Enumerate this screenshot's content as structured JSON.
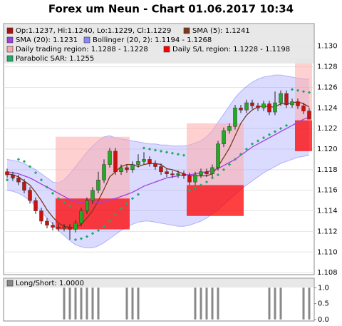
{
  "chart_data": {
    "type": "candlestick",
    "title": "Forex um Neun - Chart 01.06.2017 10:34",
    "ylim": [
      1.1078,
      1.1322
    ],
    "yticks": [
      1.108,
      {
        "value": 1.11,
        "label": "1.110"
      },
      1.112,
      1.114,
      1.116,
      1.118,
      {
        "value": 1.12,
        "label": "1.120"
      },
      1.122,
      1.124,
      1.126,
      1.128,
      {
        "value": 1.13,
        "label": "1.130"
      }
    ],
    "grid": true,
    "candles": {
      "name": "Op:1.1237, Hi:1.1240, Lo:1.1229, Cl:1.1229",
      "color": "#aa1111",
      "color_up": "#22aa22",
      "color_down": "#cc1111",
      "open": [
        1.1178,
        1.1175,
        1.1172,
        1.1168,
        1.116,
        1.115,
        1.114,
        1.113,
        1.1126,
        1.1124,
        1.1123,
        1.1124,
        1.1122,
        1.1128,
        1.114,
        1.115,
        1.116,
        1.117,
        1.1185,
        1.1198,
        1.1178,
        1.1182,
        1.118,
        1.1185,
        1.1188,
        1.119,
        1.1186,
        1.1183,
        1.1178,
        1.1176,
        1.1175,
        1.1176,
        1.1174,
        1.1168,
        1.1175,
        1.1178,
        1.1176,
        1.1182,
        1.1205,
        1.1218,
        1.1222,
        1.124,
        1.1238,
        1.1245,
        1.1242,
        1.124,
        1.1244,
        1.1236,
        1.1245,
        1.1254,
        1.1243,
        1.1246,
        1.1242,
        1.1237
      ],
      "high": [
        1.1181,
        1.1178,
        1.1175,
        1.1171,
        1.1163,
        1.1153,
        1.1143,
        1.1133,
        1.1129,
        1.1127,
        1.1127,
        1.1127,
        1.1131,
        1.1143,
        1.1153,
        1.1163,
        1.1178,
        1.119,
        1.1201,
        1.1201,
        1.1185,
        1.1185,
        1.1188,
        1.1195,
        1.1197,
        1.1193,
        1.1189,
        1.1186,
        1.1181,
        1.1179,
        1.1179,
        1.1179,
        1.1177,
        1.1178,
        1.1181,
        1.1181,
        1.1185,
        1.1208,
        1.1221,
        1.1225,
        1.1243,
        1.1243,
        1.1248,
        1.1248,
        1.1245,
        1.1247,
        1.1247,
        1.1256,
        1.1257,
        1.1257,
        1.1249,
        1.1249,
        1.1245,
        1.124
      ],
      "low": [
        1.1172,
        1.1169,
        1.1165,
        1.1157,
        1.1147,
        1.1137,
        1.1127,
        1.1123,
        1.1121,
        1.112,
        1.112,
        1.1112,
        1.1119,
        1.1125,
        1.1137,
        1.1147,
        1.1157,
        1.1167,
        1.1182,
        1.1175,
        1.1175,
        1.1177,
        1.1177,
        1.1182,
        1.1185,
        1.1183,
        1.118,
        1.1175,
        1.1173,
        1.1172,
        1.1172,
        1.1171,
        1.1165,
        1.1165,
        1.1172,
        1.1173,
        1.1173,
        1.1179,
        1.1202,
        1.1215,
        1.1219,
        1.1235,
        1.1235,
        1.1239,
        1.1237,
        1.1237,
        1.1233,
        1.1233,
        1.1242,
        1.124,
        1.124,
        1.1239,
        1.1234,
        1.1229
      ],
      "close": [
        1.1175,
        1.1172,
        1.1168,
        1.116,
        1.115,
        1.114,
        1.113,
        1.1126,
        1.1124,
        1.1123,
        1.1124,
        1.1122,
        1.1128,
        1.114,
        1.115,
        1.116,
        1.117,
        1.1185,
        1.1198,
        1.1178,
        1.1182,
        1.118,
        1.1185,
        1.1188,
        1.119,
        1.1186,
        1.1183,
        1.1178,
        1.1176,
        1.1175,
        1.1176,
        1.1174,
        1.1168,
        1.1175,
        1.1178,
        1.1176,
        1.1182,
        1.1205,
        1.1218,
        1.1222,
        1.124,
        1.1238,
        1.1245,
        1.1242,
        1.124,
        1.1244,
        1.1236,
        1.1245,
        1.1254,
        1.1243,
        1.1246,
        1.1242,
        1.1237,
        1.1229
      ]
    },
    "series": [
      {
        "name": "SMA (5): 1.1241",
        "color": "#7a3a1a",
        "style": "line",
        "values": [
          1.1176,
          1.1175,
          1.1173,
          1.1169,
          1.1165,
          1.1158,
          1.115,
          1.1141,
          1.1134,
          1.1128,
          1.1125,
          1.1124,
          1.1124,
          1.1127,
          1.1133,
          1.114,
          1.115,
          1.1161,
          1.1173,
          1.1178,
          1.1183,
          1.1185,
          1.1185,
          1.1183,
          1.1185,
          1.1186,
          1.1186,
          1.1185,
          1.1181,
          1.118,
          1.1178,
          1.1176,
          1.1174,
          1.1174,
          1.1174,
          1.1174,
          1.1176,
          1.1183,
          1.1192,
          1.1201,
          1.1213,
          1.1225,
          1.1233,
          1.1238,
          1.1241,
          1.1242,
          1.1241,
          1.1241,
          1.1244,
          1.1244,
          1.1245,
          1.1246,
          1.1244,
          1.1241
        ]
      },
      {
        "name": "SMA (20): 1.1231",
        "color": "#a040e0",
        "style": "line",
        "values": [
          1.1178,
          1.1177,
          1.1176,
          1.1174,
          1.1172,
          1.1169,
          1.1166,
          1.1163,
          1.116,
          1.1157,
          1.1154,
          1.1151,
          1.1149,
          1.1148,
          1.1147,
          1.1147,
          1.1148,
          1.1149,
          1.1151,
          1.1152,
          1.1154,
          1.1156,
          1.1158,
          1.1161,
          1.1164,
          1.1166,
          1.1168,
          1.117,
          1.1172,
          1.1173,
          1.1174,
          1.1175,
          1.1175,
          1.1176,
          1.1177,
          1.1178,
          1.1179,
          1.1181,
          1.1184,
          1.1187,
          1.119,
          1.1194,
          1.1198,
          1.1202,
          1.1205,
          1.1208,
          1.1211,
          1.1214,
          1.1217,
          1.122,
          1.1223,
          1.1226,
          1.1229,
          1.1231
        ]
      },
      {
        "name": "Parabolic SAR: 1.1255",
        "color": "#22aa66",
        "style": "dots",
        "values": [
          1.117,
          1.1172,
          1.119,
          1.1188,
          1.1183,
          1.1177,
          1.117,
          1.1163,
          1.1157,
          1.1152,
          1.1148,
          1.1145,
          1.1112,
          1.1113,
          1.1115,
          1.1118,
          1.1121,
          1.1125,
          1.113,
          1.1136,
          1.1142,
          1.1147,
          1.1152,
          1.1156,
          1.1201,
          1.12,
          1.1199,
          1.1198,
          1.1197,
          1.1196,
          1.1195,
          1.1194,
          1.116,
          1.1162,
          1.1165,
          1.1168,
          1.1172,
          1.1175,
          1.118,
          1.1185,
          1.119,
          1.1195,
          1.12,
          1.1205,
          1.1208,
          1.1211,
          1.1214,
          1.1217,
          1.122,
          1.1223,
          1.1258,
          1.1257,
          1.1256,
          1.1255
        ]
      }
    ],
    "bollinger": {
      "name": "Bollinger (20, 2): 1.1194 - 1.1268",
      "color": "#8888ff",
      "upper": [
        1.119,
        1.1189,
        1.1188,
        1.1186,
        1.1183,
        1.118,
        1.1176,
        1.1172,
        1.1168,
        1.1167,
        1.117,
        1.1176,
        1.1183,
        1.119,
        1.1197,
        1.1203,
        1.1208,
        1.1212,
        1.1213,
        1.1211,
        1.121,
        1.1209,
        1.1208,
        1.1207,
        1.1206,
        1.1205,
        1.1205,
        1.1204,
        1.1204,
        1.1203,
        1.1203,
        1.1203,
        1.1204,
        1.1206,
        1.1208,
        1.1212,
        1.1218,
        1.1226,
        1.1234,
        1.1242,
        1.125,
        1.1256,
        1.1261,
        1.1265,
        1.1268,
        1.127,
        1.1271,
        1.1272,
        1.1272,
        1.1271,
        1.127,
        1.1269,
        1.1268,
        1.1268
      ],
      "lower": [
        1.116,
        1.1159,
        1.1157,
        1.1154,
        1.115,
        1.1145,
        1.1139,
        1.1133,
        1.1127,
        1.1121,
        1.1116,
        1.1111,
        1.1107,
        1.1105,
        1.1104,
        1.1104,
        1.1106,
        1.1109,
        1.1113,
        1.1117,
        1.1121,
        1.1124,
        1.1127,
        1.1129,
        1.113,
        1.113,
        1.1129,
        1.1128,
        1.1127,
        1.1126,
        1.1125,
        1.1125,
        1.1126,
        1.1128,
        1.113,
        1.1133,
        1.1137,
        1.1141,
        1.1146,
        1.1151,
        1.1156,
        1.1161,
        1.1165,
        1.1169,
        1.1173,
        1.1177,
        1.118,
        1.1183,
        1.1186,
        1.1188,
        1.119,
        1.1192,
        1.1193,
        1.1194
      ]
    },
    "regions": {
      "trading_name": "Daily trading region: 1.1288 - 1.1228",
      "trading_color": "#ffaaaa",
      "sl_name": "Daily S/L region: 1.1228 - 1.1198",
      "sl_color": "#ff0000",
      "days": [
        {
          "start": 9,
          "end": 21,
          "trading": [
            1.1212,
            1.1152
          ],
          "sl": [
            1.1152,
            1.1122
          ]
        },
        {
          "start": 32,
          "end": 41,
          "trading": [
            1.1225,
            1.1165
          ],
          "sl": [
            1.1165,
            1.1135
          ]
        },
        {
          "start": 51,
          "end": 53,
          "trading": [
            1.1288,
            1.1228
          ],
          "sl": [
            1.1228,
            1.1198
          ]
        }
      ]
    },
    "lower_panel": {
      "name": "Long/Short: 1.0000",
      "color": "#888888",
      "ylim": [
        -0.05,
        1.3
      ],
      "yticks": [
        {
          "value": 0,
          "label": "0.0"
        },
        0.5,
        {
          "value": 1,
          "label": "1.0"
        }
      ],
      "values": [
        0,
        0,
        0,
        0,
        0,
        0,
        0,
        0,
        0,
        0,
        1,
        1,
        1,
        1,
        1,
        1,
        1,
        0,
        0,
        0,
        0,
        1,
        1,
        1,
        0,
        0,
        0,
        0,
        0,
        0,
        0,
        0,
        0,
        1,
        1,
        1,
        1,
        1,
        0,
        0,
        0,
        0,
        0,
        0,
        0,
        0,
        1,
        1,
        1,
        0,
        0,
        0,
        1,
        1
      ]
    }
  }
}
